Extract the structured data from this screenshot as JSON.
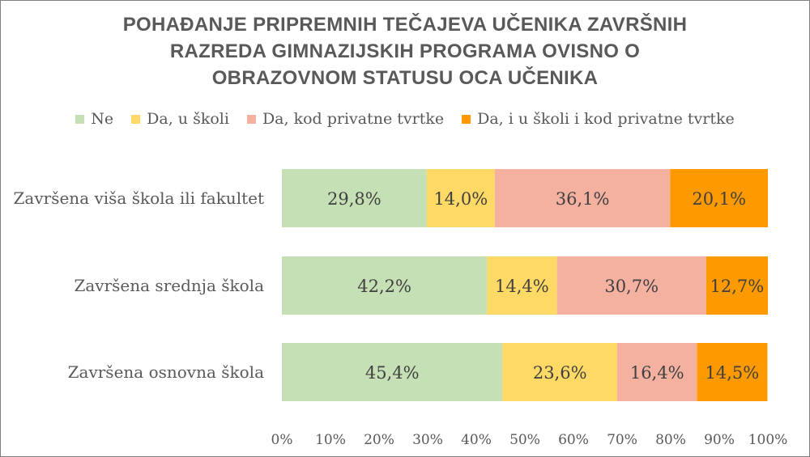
{
  "chart_data": {
    "type": "bar",
    "orientation": "horizontal",
    "stacked": true,
    "title": "POHAĐANJE PRIPREMNIH TEČAJEVA UČENIKA ZAVRŠNIH\nRAZREDA GIMNAZIJSKIH PROGRAMA OVISNO O\nOBRAZOVNOM STATUSU OCA UČENIKA",
    "categories": [
      "Završena viša škola ili fakultet",
      "Završena srednja škola",
      "Završena osnovna škola"
    ],
    "series": [
      {
        "name": "Ne",
        "color": "#c5e0b4",
        "values": [
          29.8,
          42.2,
          45.4
        ],
        "labels": [
          "29,8%",
          "42,2%",
          "45,4%"
        ]
      },
      {
        "name": "Da, u školi",
        "color": "#ffd966",
        "values": [
          14.0,
          14.4,
          23.6
        ],
        "labels": [
          "14,0%",
          "14,4%",
          "23,6%"
        ]
      },
      {
        "name": "Da, kod privatne tvrtke",
        "color": "#f4b1a0",
        "values": [
          36.1,
          30.7,
          16.4
        ],
        "labels": [
          "36,1%",
          "30,7%",
          "16,4%"
        ]
      },
      {
        "name": "Da, i u školi i kod privatne tvrtke",
        "color": "#ff9900",
        "values": [
          20.1,
          12.7,
          14.5
        ],
        "labels": [
          "20,1%",
          "12,7%",
          "14,5%"
        ]
      }
    ],
    "xlim": [
      0,
      100
    ],
    "x_ticks": [
      "0%",
      "10%",
      "20%",
      "30%",
      "40%",
      "50%",
      "60%",
      "70%",
      "80%",
      "90%",
      "100%"
    ],
    "legend_position": "top",
    "grid": false
  }
}
